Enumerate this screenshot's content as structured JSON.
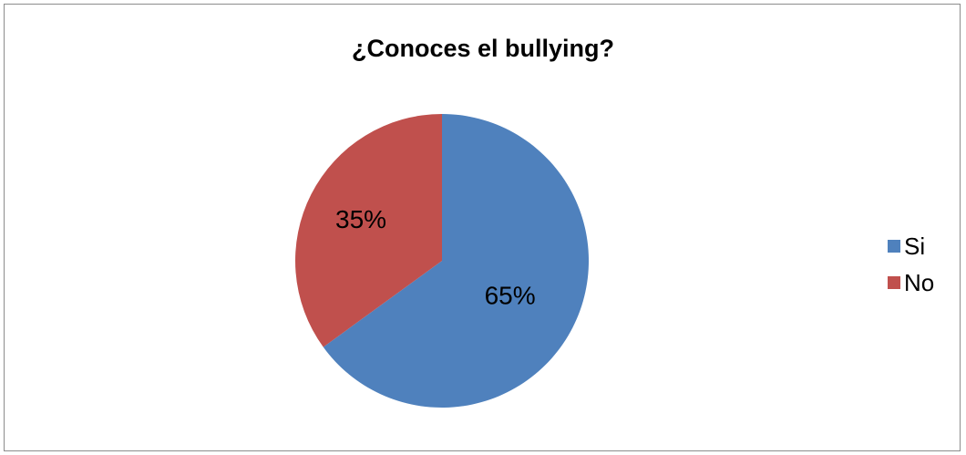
{
  "chart_data": {
    "type": "pie",
    "title": "¿Conoces el bullying?",
    "categories": [
      "Si",
      "No"
    ],
    "values": [
      65,
      35
    ],
    "labels": [
      "65%",
      "35%"
    ],
    "colors": [
      "#4F81BD",
      "#C0504D"
    ],
    "legend_position": "right"
  }
}
